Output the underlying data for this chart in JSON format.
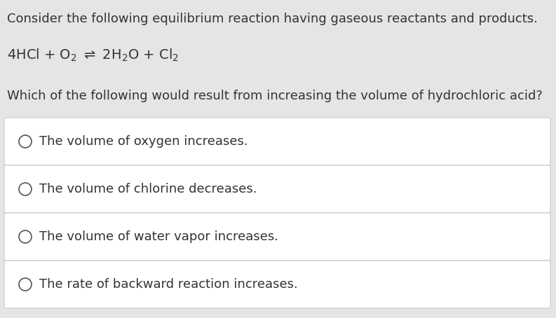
{
  "bg_color": "#e5e5e5",
  "card_bg": "#ffffff",
  "card_border": "#c8c8c8",
  "text_color": "#333333",
  "intro_text": "Consider the following equilibrium reaction having gaseous reactants and products.",
  "equation": "4HCl + O$_2$ $\\rightleftharpoons$ 2H$_2$O + Cl$_2$",
  "question_text": "Which of the following would result from increasing the volume of hydrochloric acid?",
  "options": [
    "The volume of oxygen increases.",
    "The volume of chlorine decreases.",
    "The volume of water vapor increases.",
    "The rate of backward reaction increases."
  ],
  "intro_fontsize": 13,
  "eq_fontsize": 14,
  "question_fontsize": 13,
  "option_fontsize": 13,
  "fig_width": 7.93,
  "fig_height": 4.54,
  "dpi": 100
}
